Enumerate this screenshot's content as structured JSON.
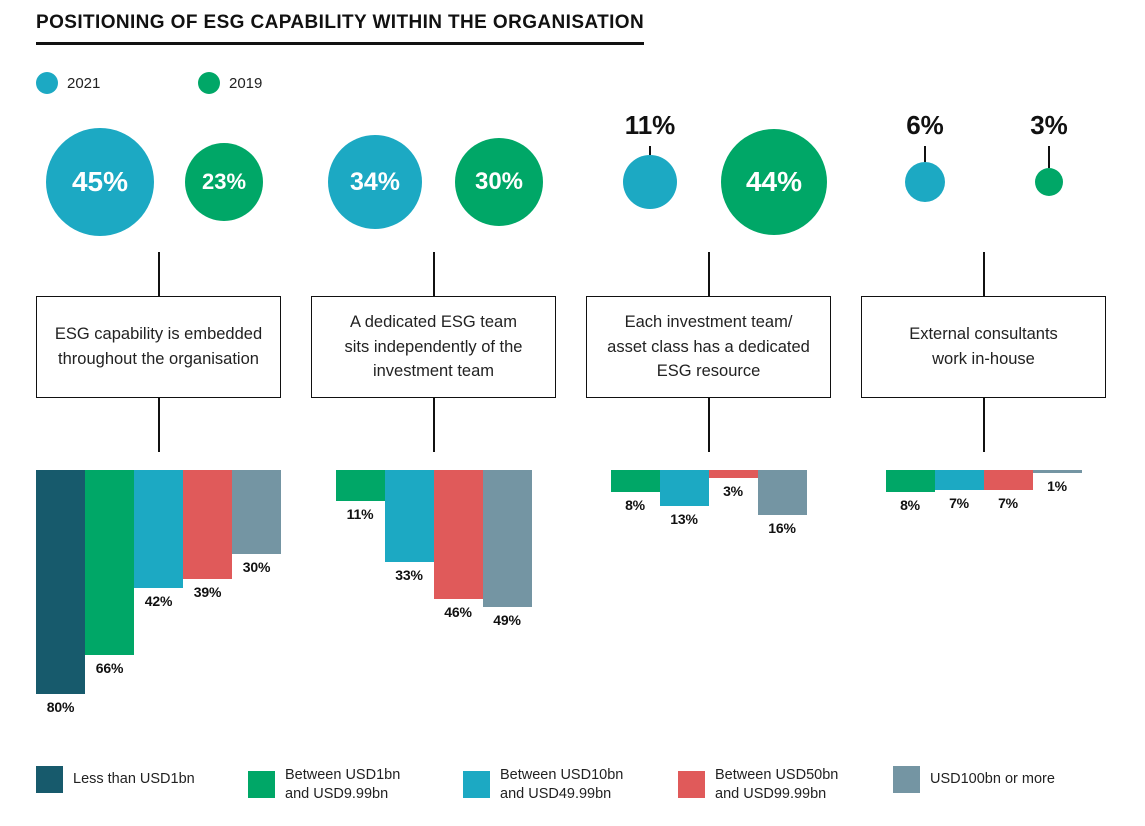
{
  "title": "POSITIONING OF ESG CAPABILITY WITHIN THE ORGANISATION",
  "colors": {
    "teal_2021": "#1ca9c3",
    "green_2019": "#00a767",
    "dark_teal": "#175a6c",
    "red": "#e05a5a",
    "grey_blue": "#7495a3",
    "text": "#111111"
  },
  "chart_data": {
    "type": "bubble+bar",
    "title": "POSITIONING OF ESG CAPABILITY WITHIN THE ORGANISATION",
    "value_unit": "%",
    "legend_position": "top-left and bottom",
    "year_series": [
      {
        "name": "2021",
        "color": "#1ca9c3"
      },
      {
        "name": "2019",
        "color": "#00a767"
      }
    ],
    "size_categories": [
      {
        "label": "Less than USD1bn",
        "color": "#175a6c"
      },
      {
        "label": "Between USD1bn\nand USD9.99bn",
        "color": "#00a767"
      },
      {
        "label": "Between USD10bn\nand USD49.99bn",
        "color": "#1ca9c3"
      },
      {
        "label": "Between USD50bn\nand USD99.99bn",
        "color": "#e05a5a"
      },
      {
        "label": "USD100bn or more",
        "color": "#7495a3"
      }
    ],
    "groups": [
      {
        "label": "ESG capability is embedded\nthroughout the organisation",
        "pct_2021": 45,
        "pct_2019": 23,
        "bars": [
          {
            "category": "Less than USD1bn",
            "value": 80
          },
          {
            "category": "Between USD1bn and USD9.99bn",
            "value": 66
          },
          {
            "category": "Between USD10bn and USD49.99bn",
            "value": 42
          },
          {
            "category": "Between USD50bn and USD99.99bn",
            "value": 39
          },
          {
            "category": "USD100bn or more",
            "value": 30
          }
        ]
      },
      {
        "label": "A dedicated ESG team\nsits independently of the\ninvestment team",
        "pct_2021": 34,
        "pct_2019": 30,
        "bars": [
          {
            "category": "Between USD1bn and USD9.99bn",
            "value": 11
          },
          {
            "category": "Between USD10bn and USD49.99bn",
            "value": 33
          },
          {
            "category": "Between USD50bn and USD99.99bn",
            "value": 46
          },
          {
            "category": "USD100bn or more",
            "value": 49
          }
        ]
      },
      {
        "label": "Each investment team/\nasset class has a dedicated\nESG resource",
        "pct_2021": 11,
        "pct_2019": 44,
        "bars": [
          {
            "category": "Between USD1bn and USD9.99bn",
            "value": 8
          },
          {
            "category": "Between USD10bn and USD49.99bn",
            "value": 13
          },
          {
            "category": "Between USD50bn and USD99.99bn",
            "value": 3
          },
          {
            "category": "USD100bn or more",
            "value": 16
          }
        ]
      },
      {
        "label": "External consultants\nwork in-house",
        "pct_2021": 6,
        "pct_2019": 3,
        "bars": [
          {
            "category": "Between USD1bn and USD9.99bn",
            "value": 8
          },
          {
            "category": "Between USD10bn and USD49.99bn",
            "value": 7
          },
          {
            "category": "Between USD50bn and USD99.99bn",
            "value": 7
          },
          {
            "category": "USD100bn or more",
            "value": 1
          }
        ]
      }
    ]
  }
}
